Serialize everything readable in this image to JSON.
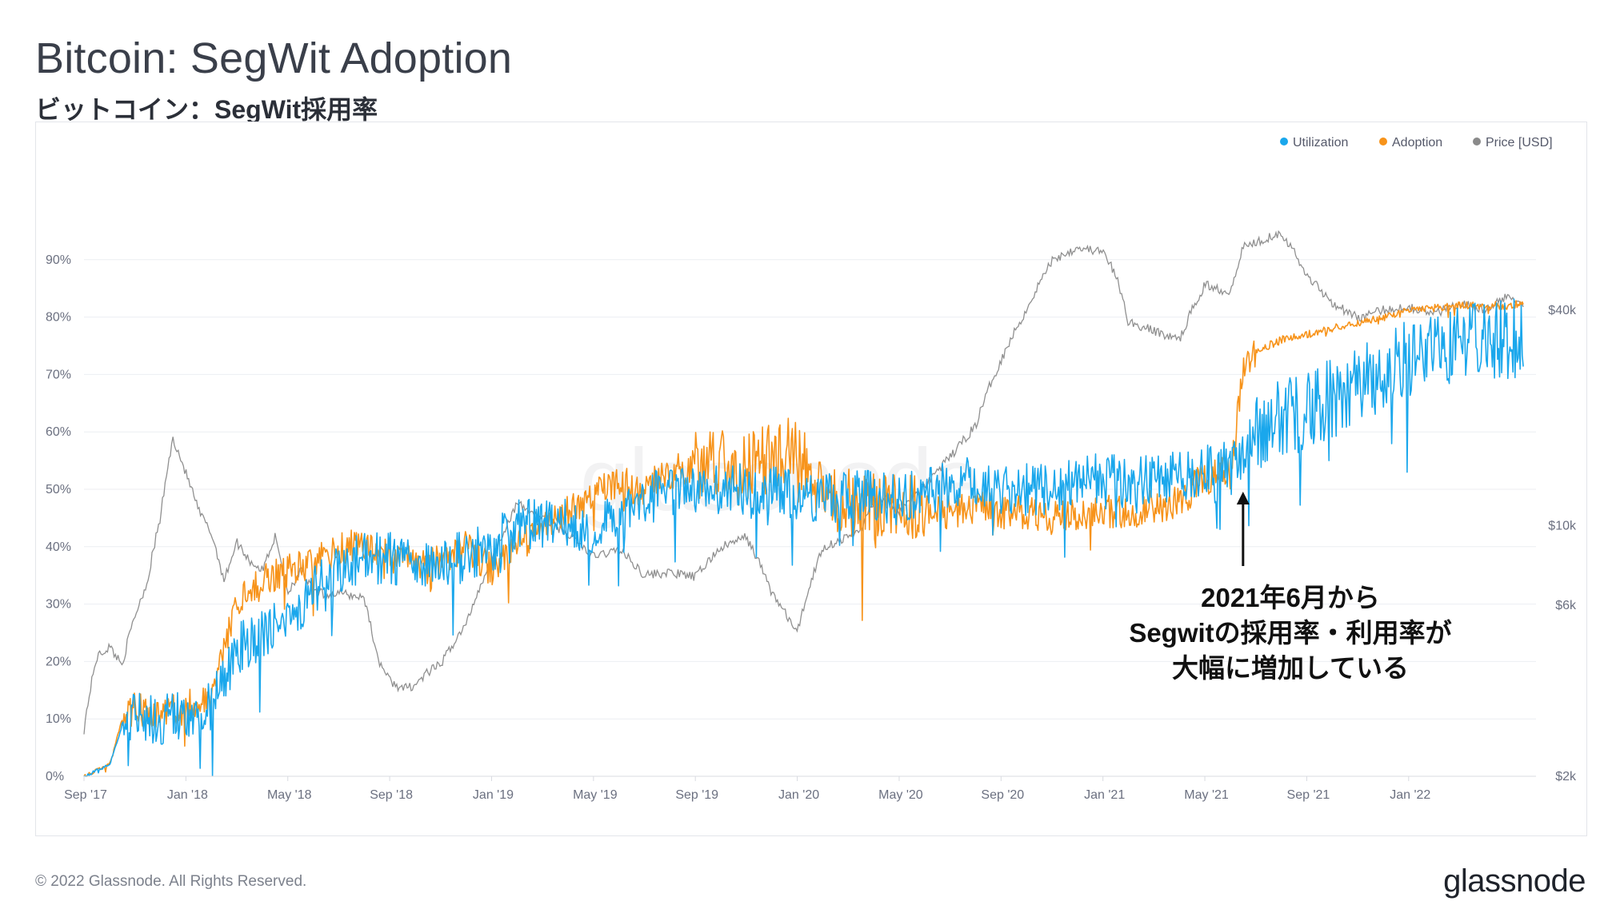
{
  "title": "Bitcoin: SegWit Adoption",
  "subtitle": "ビットコイン：SegWit採用率",
  "copyright": "© 2022 Glassnode. All Rights Reserved.",
  "brand": "glassnode",
  "watermark": "glassnode",
  "colors": {
    "utilization": "#1aa7ec",
    "adoption": "#f7931a",
    "price": "#8a8a8a",
    "grid": "#eceef2",
    "axis": "#d8dbe1"
  },
  "chart_data": {
    "type": "line",
    "title": "Bitcoin: SegWit Adoption",
    "legend_position": "top-right",
    "legend": [
      "Utilization",
      "Adoption",
      "Price [USD]"
    ],
    "x_ticks": [
      "Sep '17",
      "Jan '18",
      "May '18",
      "Sep '18",
      "Jan '19",
      "May '19",
      "Sep '19",
      "Jan '20",
      "May '20",
      "Sep '20",
      "Jan '21",
      "May '21",
      "Sep '21",
      "Jan '22"
    ],
    "x_range_months": [
      0,
      57
    ],
    "y_left_ticks": [
      "0%",
      "10%",
      "20%",
      "30%",
      "40%",
      "50%",
      "60%",
      "70%",
      "80%",
      "90%"
    ],
    "y_left_range": [
      0,
      100
    ],
    "y_right_ticks": [
      "$2k",
      "$6k",
      "$10k",
      "$40k"
    ],
    "y_right_scale": "log",
    "y_right_range": [
      2000,
      80000
    ],
    "series": [
      {
        "name": "Adoption",
        "x_months": [
          0,
          1,
          1.5,
          2,
          3,
          4,
          5,
          6,
          6.5,
          7,
          8,
          9,
          10,
          11,
          12,
          13,
          14,
          15,
          16,
          17,
          18,
          19,
          20,
          21,
          22,
          23,
          24,
          25,
          26,
          27,
          28,
          29,
          30,
          31,
          32,
          33,
          34,
          35,
          36,
          37,
          38,
          39,
          40,
          41,
          42,
          43,
          44,
          45,
          45.5,
          46,
          47,
          48,
          49,
          50,
          51,
          52,
          53,
          54,
          55,
          56,
          56.5
        ],
        "values": [
          0,
          2,
          10,
          12,
          11,
          12,
          13,
          30,
          32,
          34,
          36,
          37,
          40,
          40,
          38,
          37,
          38,
          40,
          36,
          40,
          43,
          46,
          49,
          51,
          50,
          53,
          54,
          55,
          54,
          56,
          57,
          48,
          48,
          47,
          48,
          46,
          46,
          47,
          46,
          46,
          45,
          46,
          46,
          46,
          47,
          48,
          52,
          53,
          70,
          74,
          76,
          77,
          78,
          79,
          80,
          81,
          81.5,
          82,
          82,
          82,
          82.5
        ]
      },
      {
        "name": "Utilization",
        "x_months": [
          0,
          1,
          1.5,
          2,
          3,
          4,
          5,
          6,
          7,
          8,
          9,
          10,
          11,
          12,
          13,
          14,
          15,
          16,
          17,
          18,
          19,
          20,
          21,
          22,
          23,
          24,
          25,
          26,
          27,
          28,
          29,
          30,
          31,
          32,
          33,
          34,
          35,
          36,
          37,
          38,
          39,
          40,
          41,
          42,
          43,
          44,
          45,
          45.5,
          46,
          47,
          48,
          49,
          50,
          51,
          52,
          53,
          54,
          55,
          56,
          56.5
        ],
        "values": [
          0,
          2,
          9,
          10,
          10,
          11,
          12,
          22,
          25,
          28,
          32,
          36,
          38,
          38,
          37,
          38,
          38,
          40,
          44,
          44,
          44,
          43,
          45,
          48,
          50,
          50,
          50,
          50,
          50,
          49,
          48,
          49,
          49,
          48,
          50,
          51,
          51,
          50,
          50,
          50,
          51,
          52,
          51,
          52,
          52,
          53,
          55,
          56,
          60,
          62,
          64,
          66,
          68,
          71,
          73,
          75,
          75,
          76,
          76,
          77
        ]
      },
      {
        "name": "Price [USD]",
        "x_months": [
          0,
          0.5,
          1,
          1.5,
          2,
          2.5,
          3,
          3.5,
          4,
          4.5,
          5,
          5.5,
          6,
          6.5,
          7,
          7.5,
          8,
          8.5,
          9,
          9.5,
          10,
          10.5,
          11,
          11.5,
          12,
          12.5,
          13,
          13.5,
          14,
          15,
          16,
          17,
          18,
          19,
          20,
          21,
          22,
          23,
          24,
          25,
          26,
          27,
          28,
          29,
          30,
          30.5,
          31,
          31.5,
          32,
          33,
          34,
          35,
          36,
          37,
          38,
          39,
          40,
          40.5,
          41,
          42,
          43,
          44,
          45,
          45.5,
          46,
          47,
          48,
          49,
          50,
          51,
          52,
          53,
          54,
          55,
          56,
          56.5
        ],
        "values": [
          2700,
          4300,
          4600,
          4100,
          5600,
          7000,
          10500,
          17500,
          14000,
          11000,
          9500,
          7000,
          9000,
          8000,
          7500,
          9300,
          6500,
          7500,
          6600,
          6400,
          6500,
          6400,
          6300,
          4300,
          3700,
          3500,
          3600,
          3900,
          4100,
          5300,
          8000,
          11500,
          10500,
          9500,
          8200,
          8600,
          7300,
          7400,
          7200,
          8700,
          9300,
          6500,
          5000,
          8700,
          9300,
          9800,
          11600,
          11800,
          10800,
          13000,
          15500,
          19000,
          29000,
          40000,
          55000,
          60000,
          58000,
          50000,
          37000,
          35000,
          33000,
          47000,
          45000,
          60000,
          62000,
          66000,
          50000,
          42000,
          38000,
          40000,
          41000,
          39000,
          42000,
          40000,
          44000,
          42000
        ]
      }
    ],
    "annotation": {
      "lines": [
        "2021年6月から",
        "Segwitの採用率・利用率が",
        "大幅に増加している"
      ],
      "arrow_target_month": 45.5
    }
  }
}
